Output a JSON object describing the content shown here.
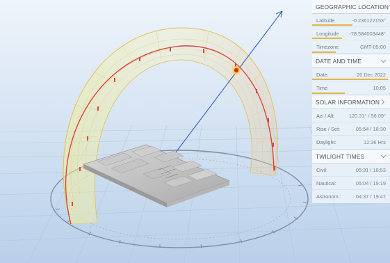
{
  "colors": {
    "accent": "#e4b547",
    "panel_header_bg": "#f6f9fc",
    "panel_body_bg": "#e8f0f8",
    "sun_dot": "#e5261c",
    "sun_path": "#d8463a",
    "arrow": "#3a5fb8"
  },
  "geo": {
    "title": "GEOGRAPHIC LOCATION",
    "latitude_label": "Latitude",
    "latitude_value": "-0.236122153°",
    "longitude_label": "Longitude",
    "longitude_value": "-78.584003448°",
    "timezone_label": "Timezone",
    "timezone_value": "GMT-05:00"
  },
  "datetime": {
    "title": "DATE AND TIME",
    "date_label": "Date:",
    "date_value": "20 Dec 2022",
    "date_fraction": 0.97,
    "time_label": "Time",
    "time_value": "10:05",
    "time_fraction": 0.42
  },
  "solar": {
    "title": "SOLAR INFORMATION",
    "azalt_label": "Azi / Alt:",
    "azalt_value": "120.31° / 56.09°",
    "riseset_label": "Rise / Set:",
    "riseset_value": "05:54 / 18:30",
    "daylight_label": "Daylight:",
    "daylight_value": "12:36 Hrs"
  },
  "twilight": {
    "title": "TWILIGHT TIMES",
    "civil_label": "Civil:",
    "civil_value": "05:31 / 18:53",
    "nautical_label": "Nautical:",
    "nautical_value": "05:04 / 19:19",
    "astro_label": "Astronom.:",
    "astro_value": "04:37 / 19:47"
  },
  "scene": {
    "hour_marks": [
      "6",
      "7",
      "8",
      "9",
      "10",
      "11",
      "12",
      "13",
      "14",
      "15",
      "16",
      "17",
      "18"
    ]
  }
}
